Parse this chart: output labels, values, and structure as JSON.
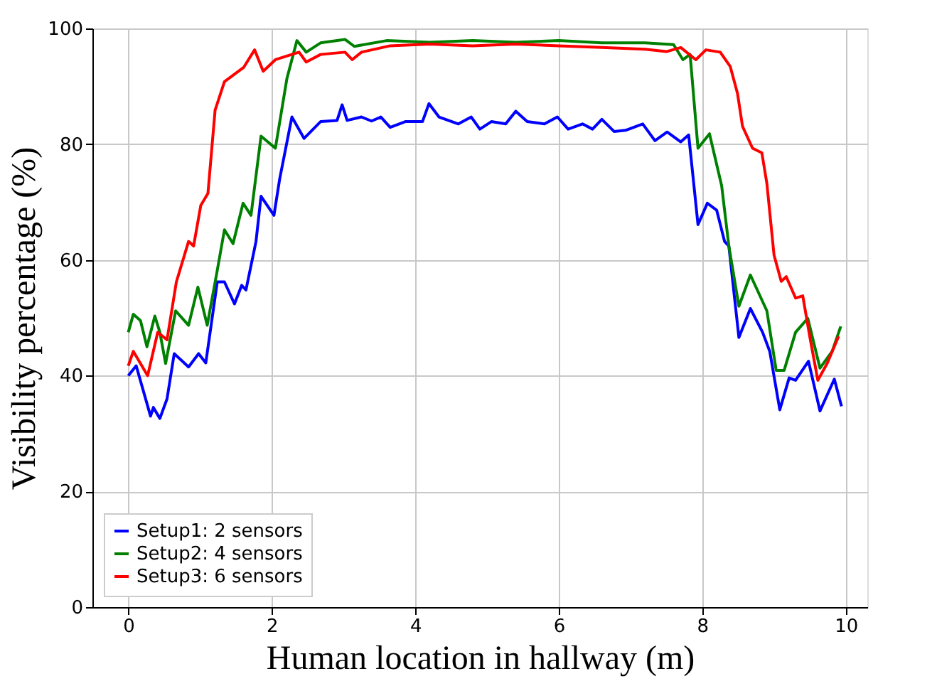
{
  "chart_data": {
    "type": "line",
    "xlabel": "Human location in hallway (m)",
    "ylabel": "Visibility percentage (%)",
    "xlim": [
      -0.5,
      10.3
    ],
    "ylim": [
      0,
      100
    ],
    "xticks": [
      0,
      2,
      4,
      6,
      8,
      10
    ],
    "yticks": [
      0,
      20,
      40,
      60,
      80,
      100
    ],
    "grid": true,
    "legend": "bottom left",
    "line_style": "solid",
    "marker": "none",
    "series": [
      {
        "name": "Setup1: 2 sensors",
        "color": "#0000ff",
        "x": [
          0,
          0.11,
          0.31,
          0.35,
          0.44,
          0.54,
          0.64,
          0.84,
          0.98,
          1.08,
          1.24,
          1.34,
          1.48,
          1.58,
          1.64,
          1.78,
          1.85,
          2.03,
          2.11,
          2.28,
          2.45,
          2.68,
          2.91,
          2.98,
          3.05,
          3.25,
          3.39,
          3.52,
          3.65,
          3.86,
          4.1,
          4.19,
          4.33,
          4.6,
          4.78,
          4.9,
          5.06,
          5.26,
          5.4,
          5.56,
          5.8,
          5.98,
          6.13,
          6.33,
          6.47,
          6.6,
          6.77,
          6.93,
          7.17,
          7.34,
          7.51,
          7.7,
          7.81,
          7.94,
          8.07,
          8.2,
          8.31,
          8.37,
          8.51,
          8.67,
          8.84,
          8.94,
          9.08,
          9.21,
          9.3,
          9.48,
          9.64,
          9.84,
          9.94
        ],
        "values": [
          40,
          41.7,
          33,
          34.5,
          32.6,
          36,
          43.8,
          41.5,
          43.8,
          42.2,
          56.2,
          56.2,
          52.4,
          55.6,
          54.8,
          63.2,
          71,
          67.7,
          74,
          84.7,
          81,
          83.9,
          84.1,
          86.8,
          84.1,
          84.7,
          84,
          84.7,
          82.9,
          83.9,
          83.9,
          87,
          84.7,
          83.5,
          84.7,
          82.6,
          83.9,
          83.5,
          85.7,
          83.9,
          83.5,
          84.7,
          82.6,
          83.5,
          82.6,
          84.3,
          82.2,
          82.4,
          83.5,
          80.6,
          82.1,
          80.4,
          81.6,
          66.1,
          69.8,
          68.6,
          63.2,
          62.4,
          46.6,
          51.6,
          47.5,
          44.2,
          34.1,
          39.6,
          39.2,
          42.5,
          33.9,
          39.4,
          34.7
        ]
      },
      {
        "name": "Setup2: 4 sensors",
        "color": "#008000",
        "x": [
          0,
          0.07,
          0.17,
          0.26,
          0.37,
          0.44,
          0.52,
          0.66,
          0.84,
          0.97,
          1.1,
          1.24,
          1.34,
          1.46,
          1.6,
          1.71,
          1.85,
          2.05,
          2.21,
          2.35,
          2.48,
          2.68,
          3.02,
          3.15,
          3.6,
          4.2,
          4.8,
          5.4,
          6.0,
          6.6,
          7.2,
          7.6,
          7.73,
          7.83,
          7.94,
          8.1,
          8.27,
          8.37,
          8.51,
          8.67,
          8.9,
          9.03,
          9.14,
          9.3,
          9.47,
          9.64,
          9.81,
          9.93
        ],
        "values": [
          47.5,
          50.6,
          49.5,
          45,
          50.3,
          47.5,
          42.1,
          51.2,
          48.7,
          55.3,
          48.7,
          58.2,
          65.2,
          62.8,
          69.8,
          67.7,
          81.4,
          79.3,
          91.3,
          97.9,
          95.9,
          97.5,
          98.1,
          96.9,
          97.9,
          97.6,
          97.9,
          97.6,
          97.9,
          97.5,
          97.5,
          97.2,
          94.6,
          95.5,
          79.3,
          81.8,
          72.8,
          62.4,
          52,
          57.4,
          51.2,
          40.9,
          40.9,
          47.5,
          49.9,
          41.3,
          44.2,
          48.5
        ]
      },
      {
        "name": "Setup3: 6 sensors",
        "color": "#ff0000",
        "x": [
          0,
          0.07,
          0.27,
          0.41,
          0.54,
          0.67,
          0.84,
          0.91,
          1.01,
          1.11,
          1.21,
          1.34,
          1.61,
          1.76,
          1.88,
          2.05,
          2.38,
          2.48,
          2.68,
          3.02,
          3.12,
          3.25,
          3.65,
          4.2,
          4.8,
          5.4,
          6.0,
          6.6,
          7.2,
          7.5,
          7.7,
          7.91,
          8.05,
          8.25,
          8.39,
          8.49,
          8.56,
          8.7,
          8.83,
          8.9,
          9.0,
          9.1,
          9.17,
          9.3,
          9.4,
          9.5,
          9.61,
          9.74,
          9.9
        ],
        "values": [
          41.7,
          44.2,
          40,
          47.5,
          46.2,
          56.2,
          63.2,
          62.4,
          69.4,
          71.5,
          85.9,
          90.8,
          93.3,
          96.3,
          92.6,
          94.6,
          95.9,
          94.2,
          95.5,
          95.9,
          94.6,
          95.9,
          97,
          97.3,
          97,
          97.3,
          97,
          96.7,
          96.4,
          96,
          96.7,
          94.6,
          96.3,
          95.9,
          93.4,
          88.8,
          83.1,
          79.3,
          78.5,
          73.2,
          60.8,
          56.3,
          57.1,
          53.4,
          53.8,
          46.6,
          39.2,
          42.1,
          46.8
        ]
      }
    ]
  }
}
